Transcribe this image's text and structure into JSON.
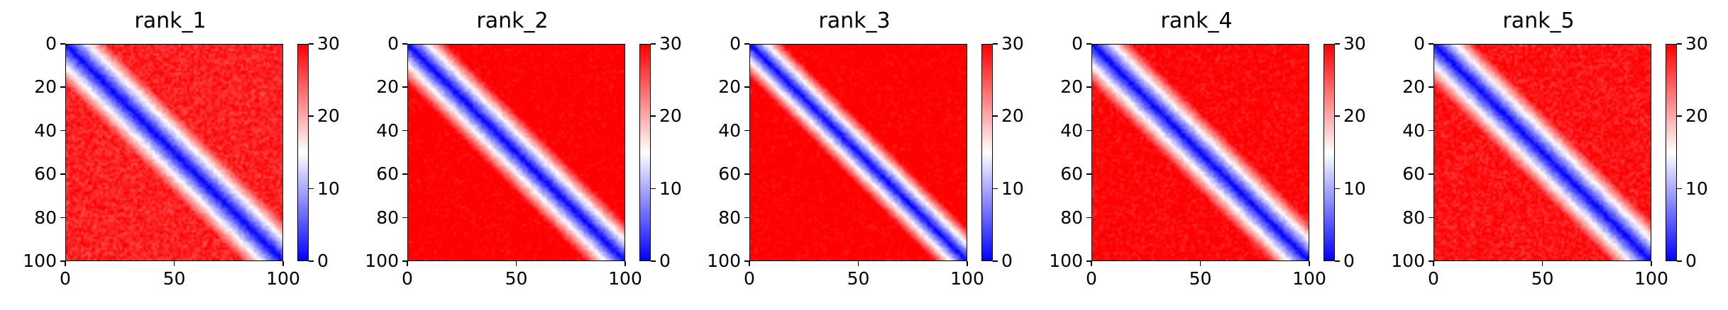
{
  "chart_data": [
    {
      "type": "heatmap",
      "title": "rank_1",
      "x_ticks": [
        "0",
        "50",
        "100"
      ],
      "y_ticks": [
        "0",
        "20",
        "40",
        "60",
        "80",
        "100"
      ],
      "xlim": [
        0,
        100
      ],
      "ylim": [
        0,
        100
      ],
      "colorbar_ticks": [
        "0",
        "10",
        "20",
        "30"
      ],
      "clim": [
        0,
        30
      ],
      "colormap": "bwr",
      "diagonal_width": 6,
      "off_diagonal_level": 26
    },
    {
      "type": "heatmap",
      "title": "rank_2",
      "x_ticks": [
        "0",
        "50",
        "100"
      ],
      "y_ticks": [
        "0",
        "20",
        "40",
        "60",
        "80",
        "100"
      ],
      "xlim": [
        0,
        100
      ],
      "ylim": [
        0,
        100
      ],
      "colorbar_ticks": [
        "0",
        "10",
        "20",
        "30"
      ],
      "clim": [
        0,
        30
      ],
      "colormap": "bwr",
      "diagonal_width": 6,
      "off_diagonal_level": 29
    },
    {
      "type": "heatmap",
      "title": "rank_3",
      "x_ticks": [
        "0",
        "50",
        "100"
      ],
      "y_ticks": [
        "0",
        "20",
        "40",
        "60",
        "80",
        "100"
      ],
      "xlim": [
        0,
        100
      ],
      "ylim": [
        0,
        100
      ],
      "colorbar_ticks": [
        "0",
        "10",
        "20",
        "30"
      ],
      "clim": [
        0,
        30
      ],
      "colormap": "bwr",
      "diagonal_width": 5,
      "off_diagonal_level": 29
    },
    {
      "type": "heatmap",
      "title": "rank_4",
      "x_ticks": [
        "0",
        "50",
        "100"
      ],
      "y_ticks": [
        "0",
        "20",
        "40",
        "60",
        "80",
        "100"
      ],
      "xlim": [
        0,
        100
      ],
      "ylim": [
        0,
        100
      ],
      "colorbar_ticks": [
        "0",
        "10",
        "20",
        "30"
      ],
      "clim": [
        0,
        30
      ],
      "colormap": "bwr",
      "diagonal_width": 6,
      "off_diagonal_level": 28
    },
    {
      "type": "heatmap",
      "title": "rank_5",
      "x_ticks": [
        "0",
        "50",
        "100"
      ],
      "y_ticks": [
        "0",
        "20",
        "40",
        "60",
        "80",
        "100"
      ],
      "xlim": [
        0,
        100
      ],
      "ylim": [
        0,
        100
      ],
      "colorbar_ticks": [
        "0",
        "10",
        "20",
        "30"
      ],
      "clim": [
        0,
        30
      ],
      "colormap": "bwr",
      "diagonal_width": 6,
      "off_diagonal_level": 27
    }
  ],
  "colors": {
    "low": "#0000ff",
    "mid": "#ffffff",
    "high": "#ff0000"
  }
}
